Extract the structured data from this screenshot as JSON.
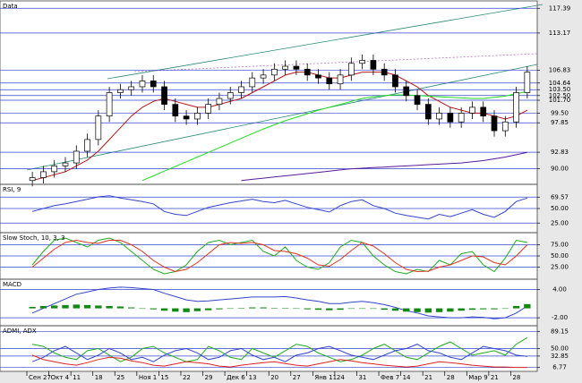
{
  "chart_data": [
    {
      "type": "candlestick",
      "title": "Data",
      "categories": [
        "Сен 27",
        null,
        "Окт 4",
        null,
        "11",
        null,
        "18",
        null,
        "25",
        null,
        "Ноя 1",
        null,
        "15",
        null,
        "22",
        null,
        "29",
        null,
        "Дек 6",
        null,
        "13",
        null,
        "20",
        null,
        "27",
        null,
        "Янв 11",
        null,
        "24",
        null,
        "31",
        null,
        "Фев 7",
        null,
        "14",
        null,
        "21",
        null,
        "28",
        null,
        "Мар 9",
        null,
        "21",
        null,
        "28",
        null
      ],
      "open": [
        88,
        88.5,
        89.5,
        90.5,
        91,
        93,
        95,
        99,
        103,
        103.5,
        104,
        105,
        104,
        101,
        99,
        98.5,
        99.5,
        101,
        102,
        103,
        104,
        105.5,
        106,
        107,
        107.5,
        107,
        106,
        105.5,
        104.5,
        106,
        108,
        108.5,
        107,
        106,
        104,
        102.5,
        101,
        98.5,
        99.5,
        98,
        99.5,
        100.5,
        99,
        96.5,
        98,
        103
      ],
      "high": [
        89.5,
        90.5,
        91.5,
        92,
        94,
        96,
        100,
        104,
        104.5,
        105,
        106,
        106,
        105,
        102,
        100,
        100.5,
        102,
        103,
        104,
        105,
        106.5,
        107,
        108,
        108.5,
        108.5,
        108,
        107,
        106.5,
        107,
        109,
        109.5,
        109.5,
        108,
        107,
        105,
        103.5,
        102,
        100.5,
        100.5,
        100.5,
        101.5,
        101.5,
        100,
        99,
        104,
        107.5
      ],
      "low": [
        87,
        87.5,
        88.5,
        89.5,
        90,
        92,
        94,
        98,
        102,
        102.5,
        103,
        103,
        100,
        98,
        97.5,
        97.5,
        98.5,
        100,
        101,
        102,
        103,
        104.5,
        105,
        106,
        106,
        105,
        104.5,
        103.5,
        103.5,
        105,
        107,
        106,
        105,
        103,
        101.5,
        100,
        97.5,
        97.5,
        97,
        97,
        98.5,
        98,
        95.5,
        95.5,
        97,
        102
      ],
      "close": [
        88.5,
        89.5,
        90.5,
        91,
        93,
        95,
        99,
        103,
        103.5,
        104,
        105,
        104,
        101,
        99,
        98.5,
        99.5,
        101,
        102,
        103,
        104,
        105.5,
        106,
        107,
        107.5,
        107,
        106,
        105.5,
        104.5,
        106,
        108,
        108.5,
        107,
        106,
        104,
        102.5,
        101,
        98.5,
        99.5,
        98,
        99.5,
        100.5,
        99,
        96.5,
        98,
        103,
        106.5
      ],
      "series": [
        {
          "color": "#b01818",
          "values": [
            88,
            88.5,
            89,
            89.5,
            90.5,
            91.5,
            93,
            95,
            97,
            99,
            100.5,
            101.5,
            102,
            101.5,
            101,
            100.5,
            100.5,
            101,
            101.5,
            102,
            103,
            104,
            105,
            106,
            106.5,
            106.5,
            106,
            105.5,
            105.5,
            106,
            106.5,
            106.5,
            106.5,
            106,
            105,
            104,
            102.5,
            101.5,
            100.5,
            100,
            99.5,
            99.5,
            99,
            98.5,
            99,
            100
          ]
        },
        {
          "color": "#22dd22",
          "values": [
            null,
            null,
            null,
            null,
            null,
            null,
            null,
            null,
            null,
            null,
            88,
            88.8,
            89.6,
            90.4,
            91.2,
            92,
            92.8,
            93.6,
            94.4,
            95.2,
            96,
            96.8,
            97.5,
            98.2,
            98.8,
            99.4,
            100,
            100.5,
            101,
            101.5,
            102,
            102.3,
            102.5,
            102.6,
            102.6,
            102.5,
            102.4,
            102.3,
            102.2,
            102.1,
            102,
            102,
            102.2,
            102.4,
            102.8,
            103.2
          ]
        },
        {
          "color": "#5a1a9a",
          "values": [
            null,
            null,
            null,
            null,
            null,
            null,
            null,
            null,
            null,
            null,
            null,
            null,
            null,
            null,
            null,
            null,
            null,
            null,
            null,
            88,
            88.2,
            88.4,
            88.6,
            88.8,
            89,
            89.2,
            89.4,
            89.6,
            89.8,
            90,
            90.1,
            90.2,
            90.3,
            90.4,
            90.5,
            90.6,
            90.7,
            90.8,
            90.9,
            91,
            91.2,
            91.4,
            91.7,
            92,
            92.4,
            92.8
          ]
        }
      ],
      "ylim": [
        87.5,
        118.5
      ],
      "yticks": [
        117.39,
        113.17,
        106.83,
        104.64,
        {
          "value": 103.5,
          "label": "103.50"
        },
        {
          "value": 102.5,
          "label": "102.50"
        },
        {
          "value": 101.7,
          "label": "101.70"
        },
        {
          "value": 99.5,
          "label": "99.50"
        },
        97.85,
        92.83,
        {
          "value": 90,
          "label": "90.00"
        }
      ],
      "grid": true
    },
    {
      "type": "line",
      "title": "RSI, 9",
      "series": [
        {
          "color": "#3344cc",
          "values": [
            45,
            50,
            55,
            58,
            62,
            66,
            70,
            72,
            68,
            65,
            62,
            58,
            45,
            40,
            38,
            45,
            52,
            56,
            60,
            63,
            66,
            62,
            60,
            64,
            58,
            52,
            48,
            44,
            55,
            62,
            65,
            55,
            50,
            42,
            38,
            35,
            32,
            40,
            36,
            42,
            48,
            40,
            35,
            45,
            62,
            68
          ]
        }
      ],
      "ylim": [
        10,
        90
      ],
      "yticks": [
        69.57,
        {
          "value": 50,
          "label": "50.00"
        },
        {
          "value": 25,
          "label": "25.00"
        }
      ],
      "grid": true
    },
    {
      "type": "line",
      "title": "Slow Stoch, 10, 3, 3",
      "series": [
        {
          "color": "#22aa22",
          "values": [
            30,
            60,
            85,
            90,
            80,
            70,
            85,
            90,
            80,
            60,
            40,
            20,
            10,
            15,
            30,
            60,
            80,
            85,
            75,
            80,
            85,
            60,
            50,
            70,
            40,
            25,
            20,
            35,
            70,
            85,
            80,
            50,
            30,
            15,
            10,
            20,
            15,
            40,
            30,
            55,
            60,
            30,
            15,
            45,
            85,
            80
          ]
        },
        {
          "color": "#dd3322",
          "values": [
            25,
            45,
            65,
            80,
            85,
            80,
            78,
            85,
            85,
            75,
            60,
            40,
            25,
            15,
            20,
            35,
            55,
            75,
            80,
            78,
            80,
            75,
            62,
            60,
            55,
            45,
            30,
            27,
            42,
            62,
            80,
            72,
            55,
            35,
            20,
            15,
            16,
            25,
            30,
            40,
            50,
            48,
            35,
            30,
            50,
            75
          ]
        }
      ],
      "ylim": [
        0,
        100
      ],
      "yticks": [
        {
          "value": 75,
          "label": "75.00"
        },
        {
          "value": 50,
          "label": "50.00"
        },
        {
          "value": 25,
          "label": "25.00"
        }
      ],
      "grid": true
    },
    {
      "type": "line",
      "title": "MACD",
      "series": [
        {
          "color": "#3344cc",
          "values": [
            -1,
            0,
            1,
            2,
            3,
            3.5,
            4,
            4.3,
            4.5,
            4.4,
            4.2,
            4,
            3.2,
            2.5,
            1.8,
            1.5,
            1.6,
            1.8,
            2,
            2.2,
            2.4,
            2.4,
            2.4,
            2.5,
            2.2,
            1.8,
            1.5,
            1,
            1,
            1.3,
            1.5,
            1.2,
            0.8,
            0.2,
            -0.5,
            -1,
            -1.6,
            -1.8,
            -2,
            -2,
            -1.8,
            -1.9,
            -2.2,
            -2,
            -1,
            0.5
          ]
        },
        {
          "type": "bar",
          "color": "#118811",
          "values": [
            0.3,
            0.5,
            0.6,
            0.7,
            0.8,
            0.7,
            0.6,
            0.5,
            0.4,
            0.2,
            0,
            -0.2,
            -0.5,
            -0.7,
            -0.8,
            -0.6,
            -0.4,
            -0.2,
            0,
            0.1,
            0.2,
            0.2,
            0.1,
            0.1,
            0,
            -0.2,
            -0.3,
            -0.4,
            -0.3,
            -0.1,
            0,
            -0.1,
            -0.3,
            -0.5,
            -0.7,
            -0.8,
            -0.9,
            -0.8,
            -0.7,
            -0.5,
            -0.3,
            -0.2,
            -0.2,
            0,
            0.5,
            0.9
          ]
        }
      ],
      "ylim": [
        -3.5,
        6
      ],
      "yticks": [
        {
          "value": 4,
          "label": "4.00"
        },
        {
          "value": -2,
          "label": "-2.00"
        }
      ],
      "grid": true
    },
    {
      "type": "line",
      "title": "ADMI, ADX",
      "series": [
        {
          "color": "#22aa22",
          "values": [
            60,
            55,
            40,
            30,
            25,
            45,
            50,
            35,
            20,
            30,
            50,
            55,
            40,
            30,
            20,
            25,
            55,
            45,
            30,
            25,
            50,
            40,
            30,
            45,
            60,
            55,
            40,
            30,
            20,
            25,
            35,
            50,
            60,
            45,
            30,
            25,
            40,
            55,
            65,
            50,
            35,
            40,
            45,
            35,
            60,
            75
          ]
        },
        {
          "color": "#3344cc",
          "values": [
            20,
            30,
            45,
            55,
            40,
            25,
            35,
            50,
            40,
            25,
            30,
            20,
            35,
            45,
            50,
            40,
            25,
            30,
            45,
            50,
            35,
            25,
            30,
            20,
            35,
            40,
            50,
            55,
            45,
            35,
            30,
            25,
            35,
            45,
            50,
            60,
            45,
            40,
            30,
            25,
            40,
            55,
            50,
            45,
            35,
            32
          ]
        },
        {
          "color": "#dd2222",
          "values": [
            35,
            25,
            20,
            15,
            12,
            18,
            25,
            30,
            28,
            22,
            18,
            12,
            10,
            15,
            20,
            18,
            15,
            10,
            8,
            12,
            15,
            18,
            20,
            16,
            12,
            10,
            15,
            20,
            25,
            22,
            18,
            15,
            12,
            10,
            8,
            10,
            15,
            20,
            18,
            15,
            12,
            10,
            8,
            8,
            7,
            7
          ]
        }
      ],
      "ylim": [
        0,
        100
      ],
      "yticks": [
        89.15,
        {
          "value": 50,
          "label": "50.00"
        },
        32.85,
        6.77
      ],
      "grid": true
    }
  ]
}
